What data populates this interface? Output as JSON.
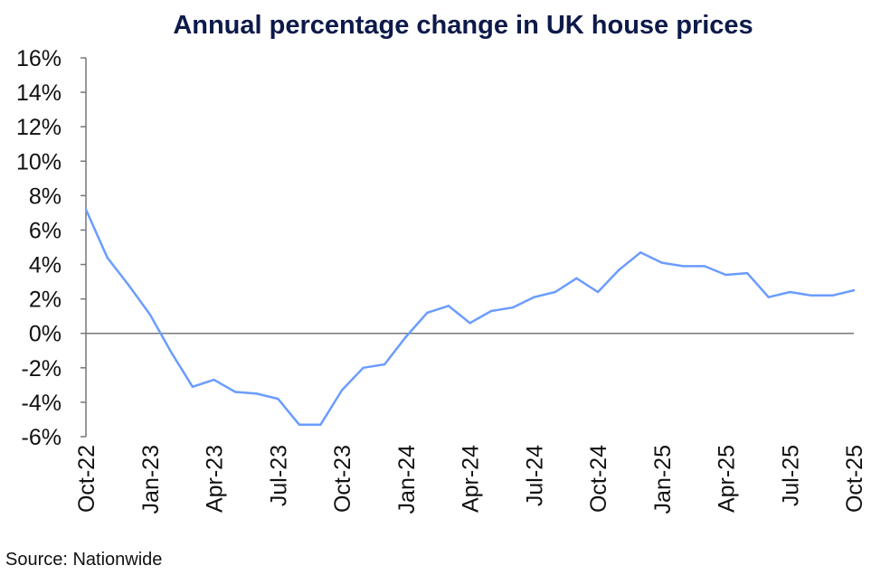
{
  "chart_data": {
    "type": "line",
    "title": "Annual percentage change in UK house prices",
    "source": "Source: Nationwide",
    "xlabel": "",
    "ylabel": "",
    "ylim": [
      -6,
      16
    ],
    "yticks": [
      "16%",
      "14%",
      "12%",
      "10%",
      "8%",
      "6%",
      "4%",
      "2%",
      "0%",
      "-2%",
      "-4%",
      "-6%"
    ],
    "ytick_values": [
      16,
      14,
      12,
      10,
      8,
      6,
      4,
      2,
      0,
      -2,
      -4,
      -6
    ],
    "xtick_labels": [
      "Oct-22",
      "Jan-23",
      "Apr-23",
      "Jul-23",
      "Oct-23",
      "Jan-24",
      "Apr-24",
      "Jul-24",
      "Oct-24",
      "Jan-25",
      "Apr-25",
      "Jul-25",
      "Oct-25"
    ],
    "x": [
      "Oct-22",
      "Nov-22",
      "Dec-22",
      "Jan-23",
      "Feb-23",
      "Mar-23",
      "Apr-23",
      "May-23",
      "Jun-23",
      "Jul-23",
      "Aug-23",
      "Sep-23",
      "Oct-23",
      "Nov-23",
      "Dec-23",
      "Jan-24",
      "Feb-24",
      "Mar-24",
      "Apr-24",
      "May-24",
      "Jun-24",
      "Jul-24",
      "Aug-24",
      "Sep-24",
      "Oct-24",
      "Nov-24",
      "Dec-24",
      "Jan-25",
      "Feb-25",
      "Mar-25",
      "Apr-25",
      "May-25",
      "Jun-25",
      "Jul-25",
      "Aug-25",
      "Sep-25",
      "Oct-25"
    ],
    "series": [
      {
        "values": [
          7.2,
          4.4,
          2.8,
          1.1,
          -1.1,
          -3.1,
          -2.7,
          -3.4,
          -3.5,
          -3.8,
          -5.3,
          -5.3,
          -3.3,
          -2.0,
          -1.8,
          -0.2,
          1.2,
          1.6,
          0.6,
          1.3,
          1.5,
          2.1,
          2.4,
          3.2,
          2.4,
          3.7,
          4.7,
          4.1,
          3.9,
          3.9,
          3.4,
          3.5,
          2.1,
          2.4,
          2.2,
          2.2,
          2.5
        ],
        "color": "#6b9cff"
      }
    ],
    "grid": false,
    "legend": "none"
  }
}
